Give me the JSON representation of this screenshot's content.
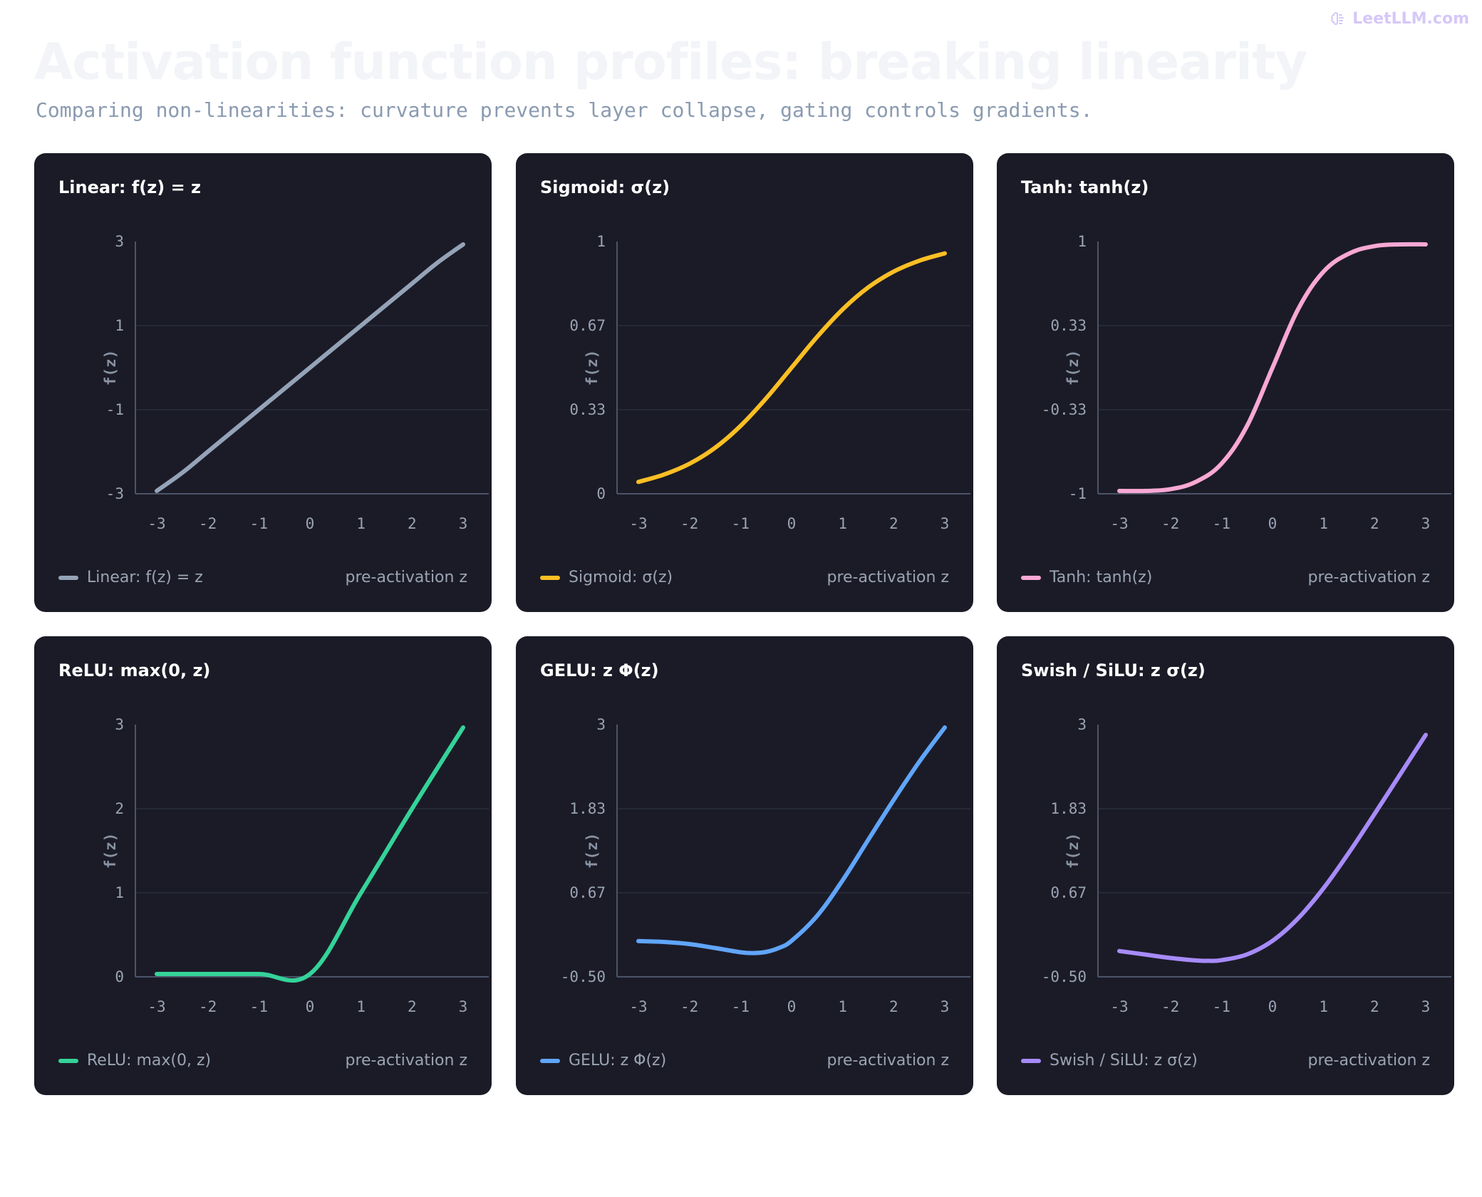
{
  "header": {
    "brand": "LeetLLM.com",
    "brand_icon": "brain-icon",
    "title": "Activation function profiles: breaking linearity",
    "subtitle": "Comparing non-linearities: curvature prevents layer collapse, gating controls gradients."
  },
  "chart_data": [
    {
      "type": "line",
      "title": "Linear: f(z) = z",
      "legend": "Linear: f(z) = z",
      "xlabel": "pre-activation z",
      "ylabel": "f(z)",
      "color": "#94a3b8",
      "xlim": [
        -3,
        3
      ],
      "ylim": [
        -3,
        3
      ],
      "x_ticks": [
        "-3",
        "-2",
        "-1",
        "0",
        "1",
        "2",
        "3"
      ],
      "y_ticks": [
        "-3",
        "-1",
        "1",
        "3"
      ],
      "x": [
        -3,
        -2.5,
        -2,
        -1.5,
        -1,
        -0.5,
        0,
        0.5,
        1,
        1.5,
        2,
        2.5,
        3
      ],
      "y": [
        -3,
        -2.5,
        -2,
        -1.5,
        -1,
        -0.5,
        0,
        0.5,
        1,
        1.5,
        2,
        2.5,
        3
      ]
    },
    {
      "type": "line",
      "title": "Sigmoid: σ(z)",
      "legend": "Sigmoid: σ(z)",
      "xlabel": "pre-activation z",
      "ylabel": "f(z)",
      "color": "#fbbf24",
      "xlim": [
        -3,
        3
      ],
      "ylim": [
        0,
        1
      ],
      "x_ticks": [
        "-3",
        "-2",
        "-1",
        "0",
        "1",
        "2",
        "3"
      ],
      "y_ticks": [
        "0",
        "0.33",
        "0.67",
        "1"
      ],
      "x": [
        -3,
        -2.5,
        -2,
        -1.5,
        -1,
        -0.5,
        0,
        0.5,
        1,
        1.5,
        2,
        2.5,
        3
      ],
      "y": [
        0.047,
        0.076,
        0.119,
        0.182,
        0.269,
        0.378,
        0.5,
        0.622,
        0.731,
        0.818,
        0.881,
        0.924,
        0.953
      ]
    },
    {
      "type": "line",
      "title": "Tanh: tanh(z)",
      "legend": "Tanh: tanh(z)",
      "xlabel": "pre-activation z",
      "ylabel": "f(z)",
      "color": "#f9a8d4",
      "xlim": [
        -3,
        3
      ],
      "ylim": [
        -1,
        1
      ],
      "x_ticks": [
        "-3",
        "-2",
        "-1",
        "0",
        "1",
        "2",
        "3"
      ],
      "y_ticks": [
        "-1",
        "-0.33",
        "0.33",
        "1"
      ],
      "x": [
        -3,
        -2.5,
        -2,
        -1.5,
        -1,
        -0.5,
        0,
        0.5,
        1,
        1.5,
        2,
        2.5,
        3
      ],
      "y": [
        -0.995,
        -0.987,
        -0.964,
        -0.905,
        -0.762,
        -0.462,
        0,
        0.462,
        0.762,
        0.905,
        0.964,
        0.987,
        0.995
      ]
    },
    {
      "type": "line",
      "title": "ReLU: max(0, z)",
      "legend": "ReLU: max(0, z)",
      "xlabel": "pre-activation z",
      "ylabel": "f(z)",
      "color": "#34d399",
      "xlim": [
        -3,
        3
      ],
      "ylim": [
        0,
        3
      ],
      "x_ticks": [
        "-3",
        "-2",
        "-1",
        "0",
        "1",
        "2",
        "3"
      ],
      "y_ticks": [
        "0",
        "1",
        "2",
        "3"
      ],
      "x": [
        -3,
        -2,
        -1,
        0,
        1,
        2,
        3
      ],
      "y": [
        0,
        0,
        0,
        0,
        1,
        2,
        3
      ]
    },
    {
      "type": "line",
      "title": "GELU: z Φ(z)",
      "legend": "GELU: z Φ(z)",
      "xlabel": "pre-activation z",
      "ylabel": "f(z)",
      "color": "#60a5fa",
      "xlim": [
        -3,
        3
      ],
      "ylim": [
        -0.5,
        3
      ],
      "x_ticks": [
        "-3",
        "-2",
        "-1",
        "0",
        "1",
        "2",
        "3"
      ],
      "y_ticks": [
        "-0.50",
        "0.67",
        "1.83",
        "3"
      ],
      "x": [
        -3,
        -2.5,
        -2,
        -1.5,
        -1,
        -0.75,
        -0.5,
        -0.25,
        0,
        0.5,
        1,
        1.5,
        2,
        2.5,
        3
      ],
      "y": [
        -0.004,
        -0.016,
        -0.045,
        -0.1,
        -0.159,
        -0.17,
        -0.154,
        -0.1,
        0,
        0.346,
        0.841,
        1.4,
        1.955,
        2.484,
        2.996
      ]
    },
    {
      "type": "line",
      "title": "Swish / SiLU: z σ(z)",
      "legend": "Swish / SiLU: z σ(z)",
      "xlabel": "pre-activation z",
      "ylabel": "f(z)",
      "color": "#a78bfa",
      "xlim": [
        -3,
        3
      ],
      "ylim": [
        -0.5,
        3
      ],
      "x_ticks": [
        "-3",
        "-2",
        "-1",
        "0",
        "1",
        "2",
        "3"
      ],
      "y_ticks": [
        "-0.50",
        "0.67",
        "1.83",
        "3"
      ],
      "x": [
        -3,
        -2.5,
        -2,
        -1.5,
        -1.25,
        -1,
        -0.5,
        0,
        0.5,
        1,
        1.5,
        2,
        2.5,
        3
      ],
      "y": [
        -0.142,
        -0.19,
        -0.238,
        -0.273,
        -0.278,
        -0.269,
        -0.189,
        0,
        0.311,
        0.731,
        1.227,
        1.762,
        2.31,
        2.858
      ]
    }
  ]
}
